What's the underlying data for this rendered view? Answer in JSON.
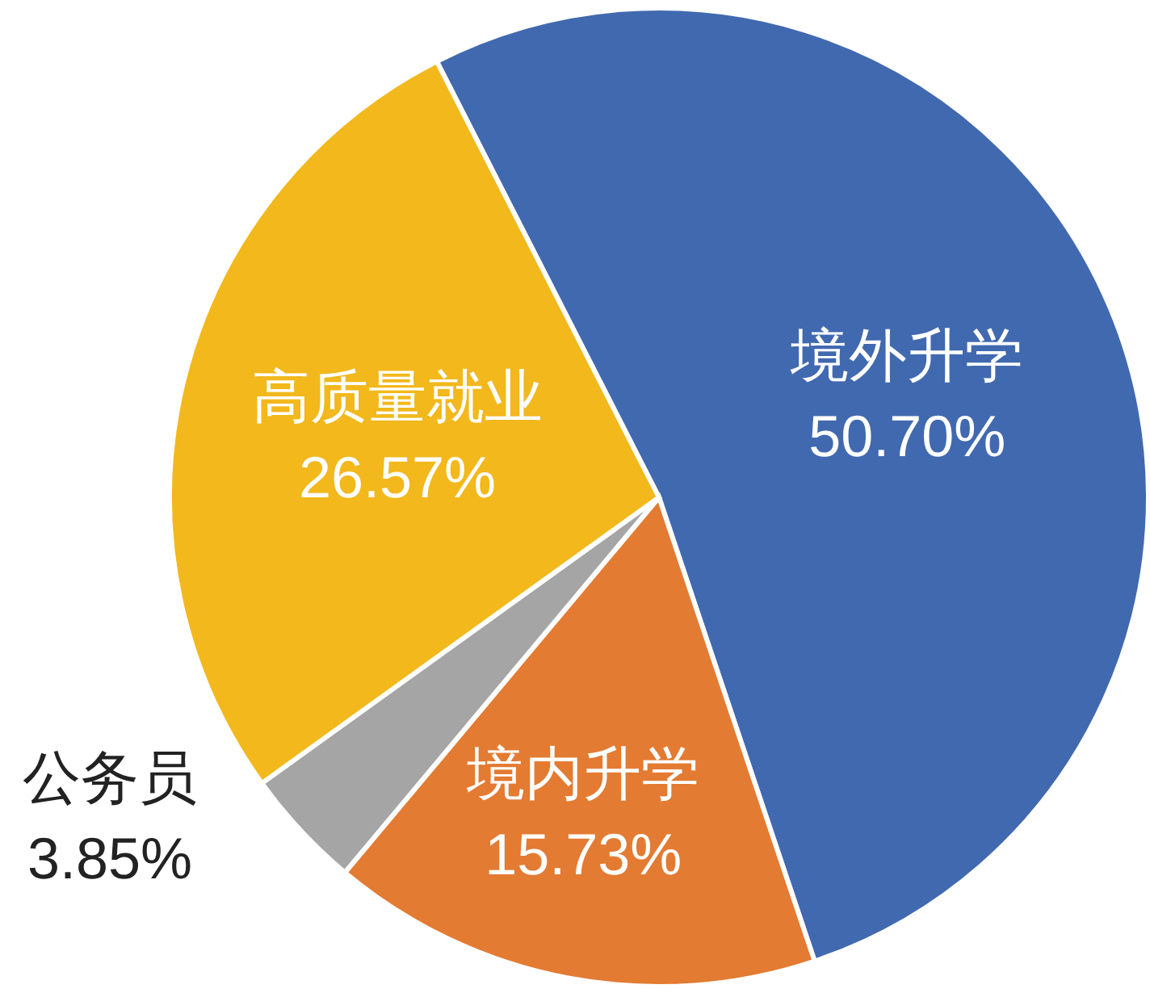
{
  "chart_data": {
    "type": "pie",
    "categories": [
      "境外升学",
      "境内升学",
      "公务员",
      "高质量就业"
    ],
    "values": [
      50.7,
      15.73,
      3.85,
      26.57
    ],
    "value_labels": [
      "50.70%",
      "15.73%",
      "3.85%",
      "26.57%"
    ],
    "colors": [
      "#4169b0",
      "#e37b32",
      "#a5a5a5",
      "#f2b81c"
    ]
  }
}
